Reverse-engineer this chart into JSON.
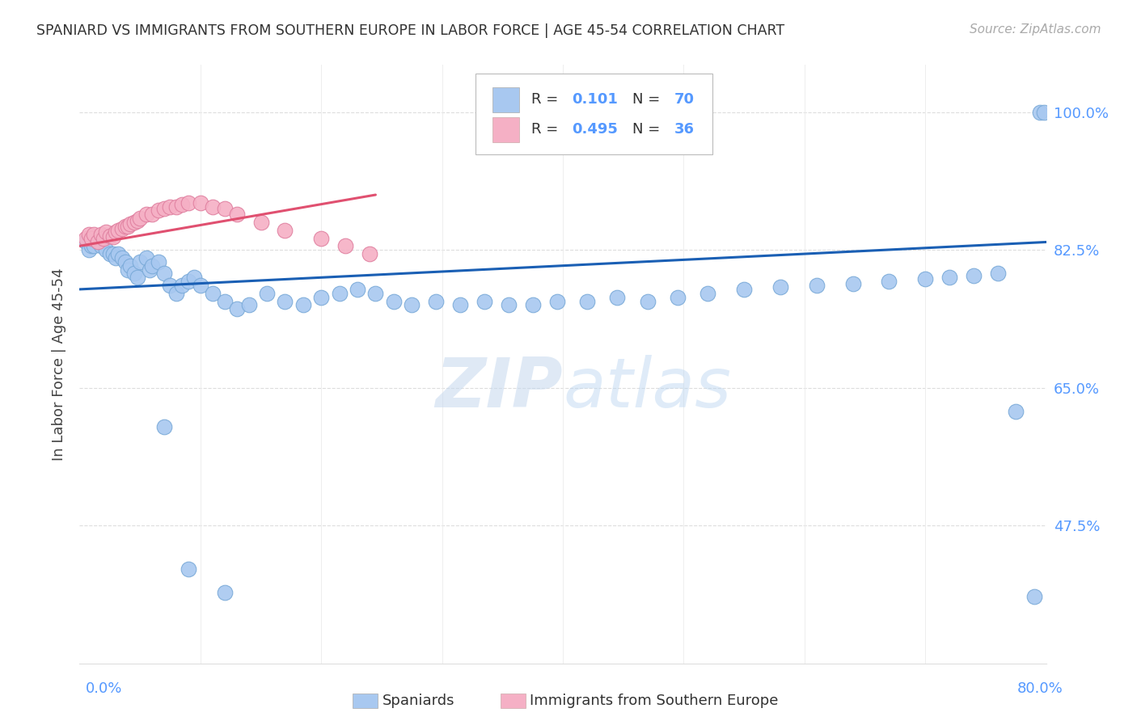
{
  "title": "SPANIARD VS IMMIGRANTS FROM SOUTHERN EUROPE IN LABOR FORCE | AGE 45-54 CORRELATION CHART",
  "source": "Source: ZipAtlas.com",
  "ylabel": "In Labor Force | Age 45-54",
  "ytick_labels": [
    "100.0%",
    "82.5%",
    "65.0%",
    "47.5%"
  ],
  "ytick_values": [
    1.0,
    0.825,
    0.65,
    0.475
  ],
  "xmin": 0.0,
  "xmax": 0.8,
  "ymin": 0.3,
  "ymax": 1.06,
  "blue_color": "#a8c8f0",
  "blue_edge_color": "#7aaad8",
  "pink_color": "#f5b0c5",
  "pink_edge_color": "#e080a0",
  "blue_line_color": "#1a5fb4",
  "pink_line_color": "#e05070",
  "watermark_color": "#d0e8f8",
  "grid_color": "#dddddd",
  "tick_color": "#5599ff",
  "title_color": "#333333",
  "source_color": "#aaaaaa",
  "ylabel_color": "#444444",
  "blue_x": [
    0.005,
    0.008,
    0.01,
    0.012,
    0.015,
    0.018,
    0.02,
    0.022,
    0.025,
    0.028,
    0.03,
    0.032,
    0.035,
    0.038,
    0.04,
    0.042,
    0.045,
    0.048,
    0.05,
    0.055,
    0.058,
    0.06,
    0.065,
    0.07,
    0.075,
    0.08,
    0.085,
    0.09,
    0.095,
    0.1,
    0.11,
    0.12,
    0.13,
    0.14,
    0.155,
    0.17,
    0.185,
    0.2,
    0.215,
    0.23,
    0.245,
    0.26,
    0.275,
    0.295,
    0.315,
    0.335,
    0.355,
    0.375,
    0.395,
    0.42,
    0.445,
    0.47,
    0.495,
    0.52,
    0.55,
    0.58,
    0.61,
    0.64,
    0.67,
    0.7,
    0.72,
    0.74,
    0.76,
    0.775,
    0.79,
    0.795,
    0.798,
    0.07,
    0.09,
    0.12
  ],
  "blue_y": [
    0.835,
    0.825,
    0.83,
    0.83,
    0.835,
    0.83,
    0.84,
    0.825,
    0.82,
    0.82,
    0.815,
    0.82,
    0.815,
    0.81,
    0.8,
    0.805,
    0.795,
    0.79,
    0.81,
    0.815,
    0.8,
    0.805,
    0.81,
    0.795,
    0.78,
    0.77,
    0.78,
    0.785,
    0.79,
    0.78,
    0.77,
    0.76,
    0.75,
    0.755,
    0.77,
    0.76,
    0.755,
    0.765,
    0.77,
    0.775,
    0.77,
    0.76,
    0.755,
    0.76,
    0.755,
    0.76,
    0.755,
    0.755,
    0.76,
    0.76,
    0.765,
    0.76,
    0.765,
    0.77,
    0.775,
    0.778,
    0.78,
    0.782,
    0.785,
    0.788,
    0.79,
    0.792,
    0.795,
    0.62,
    0.385,
    1.0,
    1.0,
    0.6,
    0.42,
    0.39
  ],
  "pink_x": [
    0.005,
    0.008,
    0.01,
    0.012,
    0.015,
    0.018,
    0.02,
    0.022,
    0.025,
    0.028,
    0.03,
    0.032,
    0.035,
    0.038,
    0.04,
    0.042,
    0.045,
    0.048,
    0.05,
    0.055,
    0.06,
    0.065,
    0.07,
    0.075,
    0.08,
    0.085,
    0.09,
    0.1,
    0.11,
    0.12,
    0.13,
    0.15,
    0.17,
    0.2,
    0.22,
    0.24
  ],
  "pink_y": [
    0.84,
    0.845,
    0.84,
    0.845,
    0.835,
    0.845,
    0.84,
    0.848,
    0.843,
    0.842,
    0.848,
    0.85,
    0.852,
    0.855,
    0.855,
    0.858,
    0.86,
    0.862,
    0.865,
    0.87,
    0.87,
    0.875,
    0.878,
    0.88,
    0.88,
    0.883,
    0.885,
    0.885,
    0.88,
    0.878,
    0.87,
    0.86,
    0.85,
    0.84,
    0.83,
    0.82
  ],
  "blue_line_x": [
    0.0,
    0.8
  ],
  "blue_line_y": [
    0.775,
    0.835
  ],
  "pink_line_x": [
    0.0,
    0.245
  ],
  "pink_line_y": [
    0.83,
    0.895
  ]
}
